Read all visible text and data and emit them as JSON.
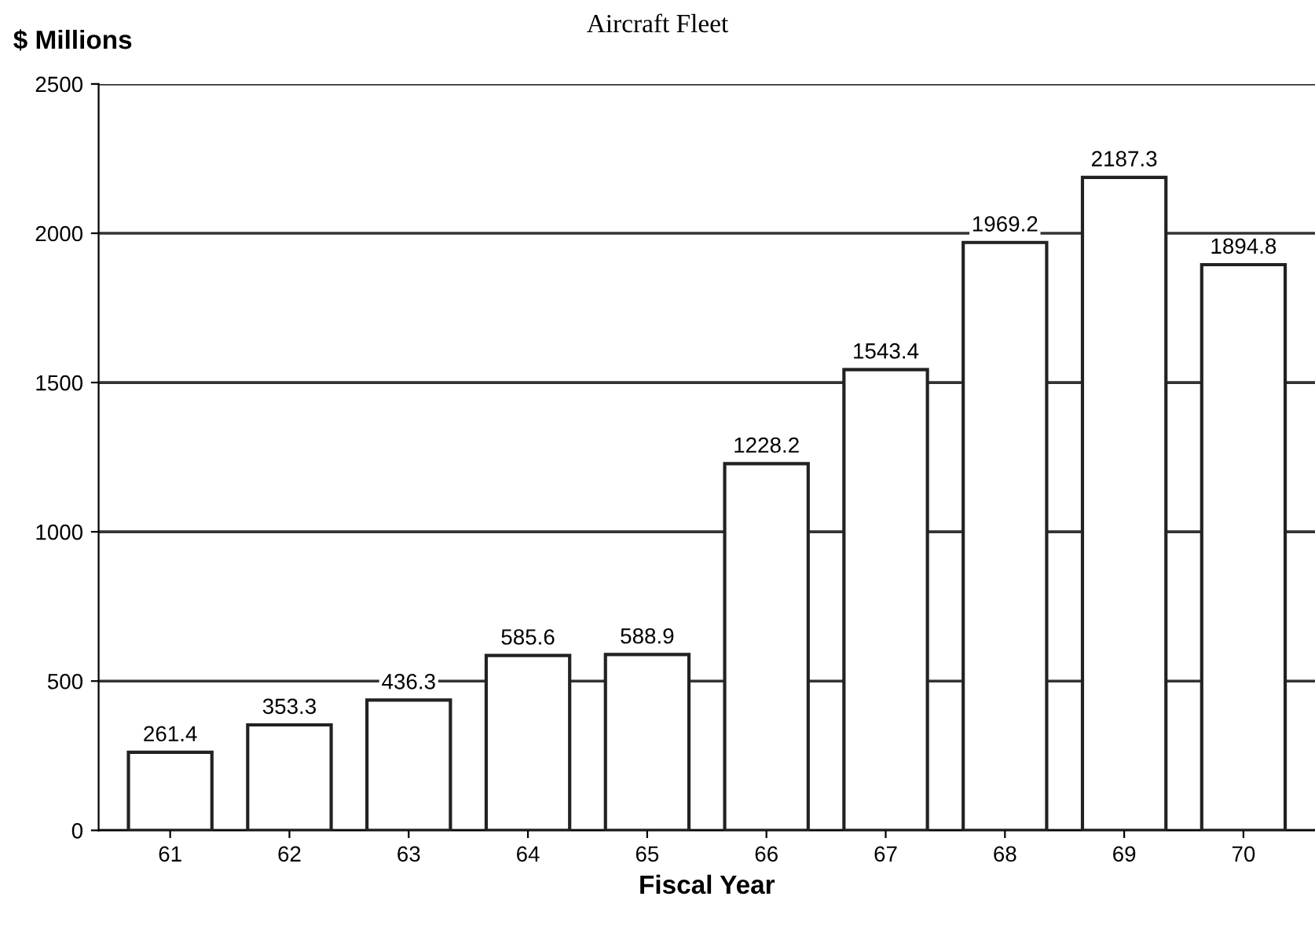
{
  "chart_data": {
    "type": "bar",
    "title": "Aircraft Fleet",
    "ylabel": "$ Millions",
    "xlabel": "Fiscal Year",
    "categories": [
      "61",
      "62",
      "63",
      "64",
      "65",
      "66",
      "67",
      "68",
      "69",
      "70"
    ],
    "values": [
      261.4,
      353.3,
      436.3,
      585.6,
      588.9,
      1228.2,
      1543.4,
      1969.2,
      2187.3,
      1894.8
    ],
    "color": "#ffffff",
    "ylim": [
      0,
      2500
    ],
    "yticks": [
      0,
      500,
      1000,
      1500,
      2000,
      2500
    ],
    "grid": "y",
    "data_labels": true
  }
}
